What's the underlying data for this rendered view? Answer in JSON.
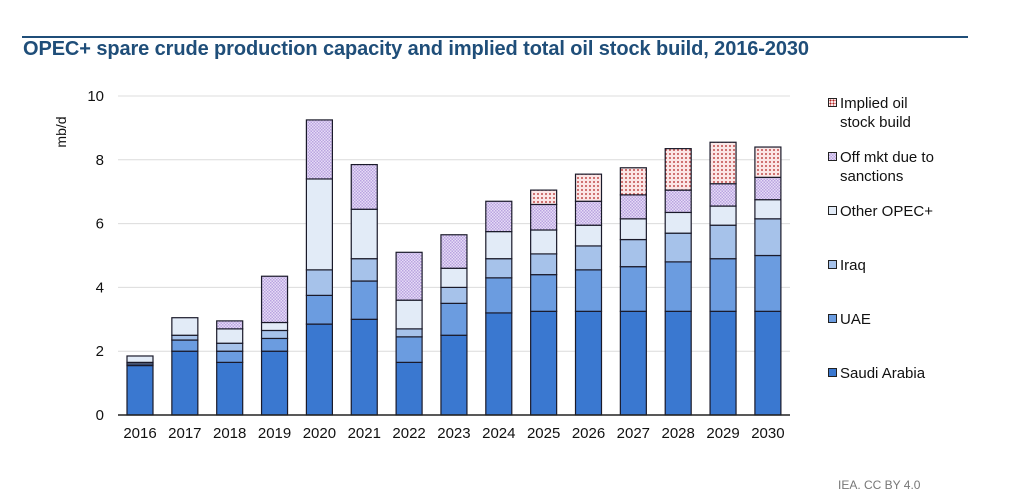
{
  "title": "OPEC+ spare crude production capacity and implied total oil stock build, 2016-2030",
  "source": "IEA. CC BY 4.0",
  "colors": {
    "title": "#1f4e79",
    "saudi_arabia": "#3a78d0",
    "uae": "#6b9ce0",
    "iraq": "#a6c2ea",
    "other_opec": "#e2ebf7",
    "sanctions": "#d8c8f0",
    "implied_build": "#f8dcdc"
  },
  "chart_data": {
    "type": "bar",
    "stacked": true,
    "title": "OPEC+ spare crude production capacity and implied total oil stock build, 2016-2030",
    "xlabel": "",
    "ylabel": "mb/d",
    "ylim": [
      0,
      10
    ],
    "yticks": [
      0,
      2,
      4,
      6,
      8,
      10
    ],
    "grid": true,
    "legend_position": "right",
    "categories": [
      "2016",
      "2017",
      "2018",
      "2019",
      "2020",
      "2021",
      "2022",
      "2023",
      "2024",
      "2025",
      "2026",
      "2027",
      "2028",
      "2029",
      "2030"
    ],
    "series": [
      {
        "name": "Saudi Arabia",
        "key": "saudi_arabia",
        "pattern": "solid",
        "values": [
          1.55,
          2.0,
          1.65,
          2.0,
          2.85,
          3.0,
          1.65,
          2.5,
          3.2,
          3.25,
          3.25,
          3.25,
          3.25,
          3.25,
          3.25
        ]
      },
      {
        "name": "UAE",
        "key": "uae",
        "pattern": "solid",
        "values": [
          0.05,
          0.35,
          0.35,
          0.4,
          0.9,
          1.2,
          0.8,
          1.0,
          1.1,
          1.15,
          1.3,
          1.4,
          1.55,
          1.65,
          1.75
        ]
      },
      {
        "name": "Iraq",
        "key": "iraq",
        "pattern": "solid",
        "values": [
          0.05,
          0.15,
          0.25,
          0.25,
          0.8,
          0.7,
          0.25,
          0.5,
          0.6,
          0.65,
          0.75,
          0.85,
          0.9,
          1.05,
          1.15
        ]
      },
      {
        "name": "Other OPEC+",
        "key": "other_opec",
        "pattern": "solid",
        "values": [
          0.2,
          0.55,
          0.45,
          0.25,
          2.85,
          1.55,
          0.9,
          0.6,
          0.85,
          0.75,
          0.65,
          0.65,
          0.65,
          0.6,
          0.6
        ]
      },
      {
        "name": "Off mkt due to sanctions",
        "key": "sanctions",
        "pattern": "checker",
        "values": [
          0,
          0,
          0.25,
          1.45,
          1.85,
          1.4,
          1.5,
          1.05,
          0.95,
          0.8,
          0.75,
          0.75,
          0.7,
          0.7,
          0.7
        ]
      },
      {
        "name": "Implied oil stock build",
        "key": "implied_build",
        "pattern": "dots",
        "values": [
          0,
          0,
          0,
          0,
          0,
          0,
          0,
          0,
          0,
          0.45,
          0.85,
          0.85,
          1.3,
          1.3,
          0.95
        ]
      }
    ],
    "legend": [
      {
        "label": "Implied oil stock build",
        "key": "implied_build"
      },
      {
        "label": "Off mkt due to sanctions",
        "key": "sanctions"
      },
      {
        "label": "Other OPEC+",
        "key": "other_opec"
      },
      {
        "label": "Iraq",
        "key": "iraq"
      },
      {
        "label": "UAE",
        "key": "uae"
      },
      {
        "label": "Saudi Arabia",
        "key": "saudi_arabia"
      }
    ]
  }
}
